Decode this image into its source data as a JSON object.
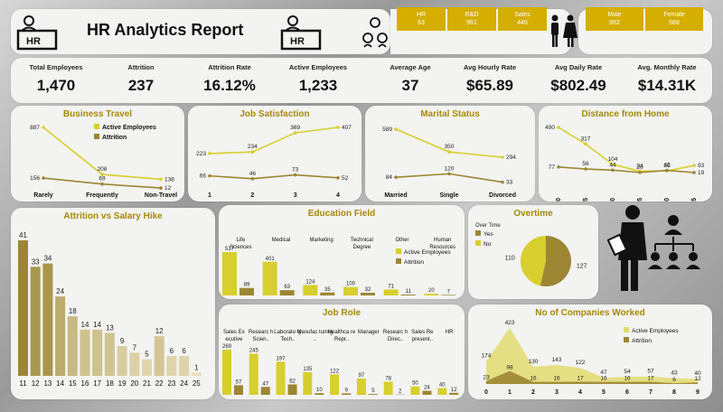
{
  "header": {
    "title": "HR Analytics Report",
    "icon_left": "hr-desk-icon",
    "icon_mid": "hr-desk-icon",
    "icon_team": "team-icon",
    "icon_people": "male-female-icon"
  },
  "departments": [
    {
      "name": "HR",
      "count": "63"
    },
    {
      "name": "R&D",
      "count": "961"
    },
    {
      "name": "Sales",
      "count": "446"
    }
  ],
  "gender": [
    {
      "name": "Male",
      "count": "882"
    },
    {
      "name": "Female",
      "count": "588"
    }
  ],
  "kpis": [
    {
      "label": "Total Employees",
      "value": "1,470"
    },
    {
      "label": "Attrition",
      "value": "237"
    },
    {
      "label": "Attrition Rate",
      "value": "16.12%"
    },
    {
      "label": "Active Employees",
      "value": "1,233"
    },
    {
      "label": "Average Age",
      "value": "37"
    },
    {
      "label": "Avg Hourly Rate",
      "value": "$65.89"
    },
    {
      "label": "Avg Daily Rate",
      "value": "$802.49"
    },
    {
      "label": "Avg. Monthly Rate",
      "value": "$14.31K"
    }
  ],
  "colors": {
    "active": "#d7cf2e",
    "attrition": "#9c8634",
    "title": "#a5890c",
    "gold": "#d4ae00"
  },
  "chart_data": [
    {
      "id": "business_travel",
      "type": "line",
      "title": "Business Travel",
      "categories": [
        "Rarely",
        "Frequently",
        "Non-Travel"
      ],
      "series": [
        {
          "name": "Active Employees",
          "values": [
            887,
            208,
            138
          ]
        },
        {
          "name": "Attrition",
          "values": [
            156,
            69,
            12
          ]
        }
      ],
      "value_labels": [
        [
          "887",
          "208",
          "138"
        ],
        [
          "156",
          "69",
          "12"
        ]
      ]
    },
    {
      "id": "job_satisfaction",
      "type": "line",
      "title": "Job Satisfaction",
      "categories": [
        "1",
        "2",
        "3",
        "4"
      ],
      "series": [
        {
          "name": "Active Employees",
          "values": [
            223,
            234,
            369,
            407
          ]
        },
        {
          "name": "Attrition",
          "values": [
            66,
            46,
            73,
            52
          ]
        }
      ],
      "value_labels": [
        [
          "223",
          "234",
          "369",
          "407"
        ],
        [
          "66",
          "46",
          "73",
          "52"
        ]
      ]
    },
    {
      "id": "marital_status",
      "type": "line",
      "title": "Marital Status",
      "categories": [
        "Married",
        "Single",
        "Divorced"
      ],
      "series": [
        {
          "name": "Active Employees",
          "values": [
            589,
            350,
            294
          ]
        },
        {
          "name": "Attrition",
          "values": [
            84,
            120,
            33
          ]
        }
      ],
      "value_labels": [
        [
          "589",
          "350",
          "294"
        ],
        [
          "84",
          "120",
          "33"
        ]
      ]
    },
    {
      "id": "distance_from_home",
      "type": "line",
      "title": "Distance from Home",
      "categories": [
        "0",
        "5",
        "10",
        "15",
        "20",
        "25"
      ],
      "series": [
        {
          "name": "Active Employees",
          "values": [
            490,
            317,
            104,
            34,
            36,
            93
          ]
        },
        {
          "name": "Attrition",
          "values": [
            77,
            56,
            44,
            20,
            42,
            19
          ]
        }
      ],
      "value_labels": [
        [
          "490",
          "317",
          "104",
          "34",
          "36",
          "93"
        ],
        [
          "77",
          "56",
          "44",
          "20",
          "42",
          "19"
        ]
      ]
    },
    {
      "id": "attrition_vs_salary_hike",
      "type": "bar",
      "title": "Attrition vs Salary Hike",
      "categories": [
        "11",
        "12",
        "13",
        "14",
        "15",
        "16",
        "17",
        "18",
        "19",
        "20",
        "21",
        "22",
        "23",
        "24",
        "25"
      ],
      "values": [
        41,
        33,
        34,
        24,
        18,
        14,
        14,
        13,
        9,
        7,
        5,
        12,
        6,
        6,
        1
      ]
    },
    {
      "id": "education_field",
      "type": "bar",
      "title": "Education Field",
      "categories": [
        "Life Sciences",
        "Medical",
        "Marketing",
        "Technical Degree",
        "Other",
        "Human Resources"
      ],
      "series": [
        {
          "name": "Active Employees",
          "values": [
            517,
            401,
            124,
            100,
            71,
            20
          ]
        },
        {
          "name": "Attrition",
          "values": [
            89,
            63,
            35,
            32,
            11,
            7
          ]
        }
      ]
    },
    {
      "id": "overtime",
      "type": "pie",
      "title": "Overtime",
      "legend_title": "Over Time",
      "categories": [
        "Yes",
        "No"
      ],
      "values": [
        127,
        110
      ]
    },
    {
      "id": "job_role",
      "type": "bar",
      "title": "Job Role",
      "categories": [
        "Sales Ex ecutive",
        "Researc h Scien..",
        "Laborato ry Tech..",
        "Manufac turing ..",
        "Healthca re Repr..",
        "Manager",
        "Researc h Direc..",
        "Sales Re present..",
        "HR"
      ],
      "series": [
        {
          "name": "Active Employees",
          "values": [
            269,
            245,
            197,
            135,
            122,
            97,
            78,
            50,
            40
          ]
        },
        {
          "name": "Attrition",
          "values": [
            57,
            47,
            62,
            10,
            9,
            5,
            2,
            24,
            12
          ]
        }
      ]
    },
    {
      "id": "companies_worked",
      "type": "area",
      "title": "No of Companies Worked",
      "categories": [
        "0",
        "1",
        "2",
        "3",
        "4",
        "5",
        "6",
        "7",
        "8",
        "9"
      ],
      "series": [
        {
          "name": "Active Employees",
          "values": [
            174,
            423,
            130,
            143,
            122,
            47,
            54,
            57,
            43,
            40
          ]
        },
        {
          "name": "Attrition",
          "values": [
            23,
            98,
            16,
            16,
            17,
            16,
            16,
            17,
            6,
            12
          ]
        }
      ]
    }
  ]
}
